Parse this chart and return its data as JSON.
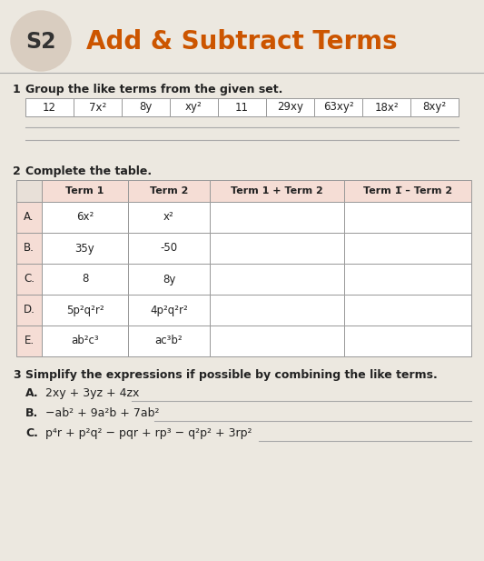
{
  "title_s2": "S2",
  "title_main": "Add & Subtract Terms",
  "title_color": "#cc5500",
  "bg_color": "#ece8e0",
  "section1_label": "1",
  "section1_text": "Group the like terms from the given set.",
  "section1_terms": [
    "12",
    "7x²",
    "8y",
    "xy²",
    "11",
    "29xy",
    "63xy²",
    "18x²",
    "8xy²"
  ],
  "section2_label": "2",
  "section2_text": "Complete the table.",
  "table_headers": [
    "",
    "Term 1",
    "Term 2",
    "Term 1 + Term 2",
    "Term 1̅ – Term 2"
  ],
  "table_rows": [
    [
      "A.",
      "6x²",
      "x²",
      "",
      ""
    ],
    [
      "B.",
      "35y",
      "-50",
      "",
      ""
    ],
    [
      "C.",
      "8",
      "8y",
      "",
      ""
    ],
    [
      "D.",
      "5p²q²r²",
      "4p²q²r²",
      "",
      ""
    ],
    [
      "E.",
      "ab²c³",
      "ac³b²",
      "",
      ""
    ]
  ],
  "section3_label": "3",
  "section3_text": "Simplify the expressions if possible by combining the like terms.",
  "expr_A_label": "A.",
  "expr_A": "2xy + 3yz + 4zx",
  "expr_B_label": "B.",
  "expr_B": "−ab² + 9a²b + 7ab²",
  "expr_C_label": "C.",
  "expr_C": "p⁴r + p²q² − pqr + rp³ − q²p² + 3rp²",
  "header_pink": "#f5ddd5",
  "row_pink": "#f5ddd5",
  "line_color": "#aaaaaa",
  "text_dark": "#222222"
}
